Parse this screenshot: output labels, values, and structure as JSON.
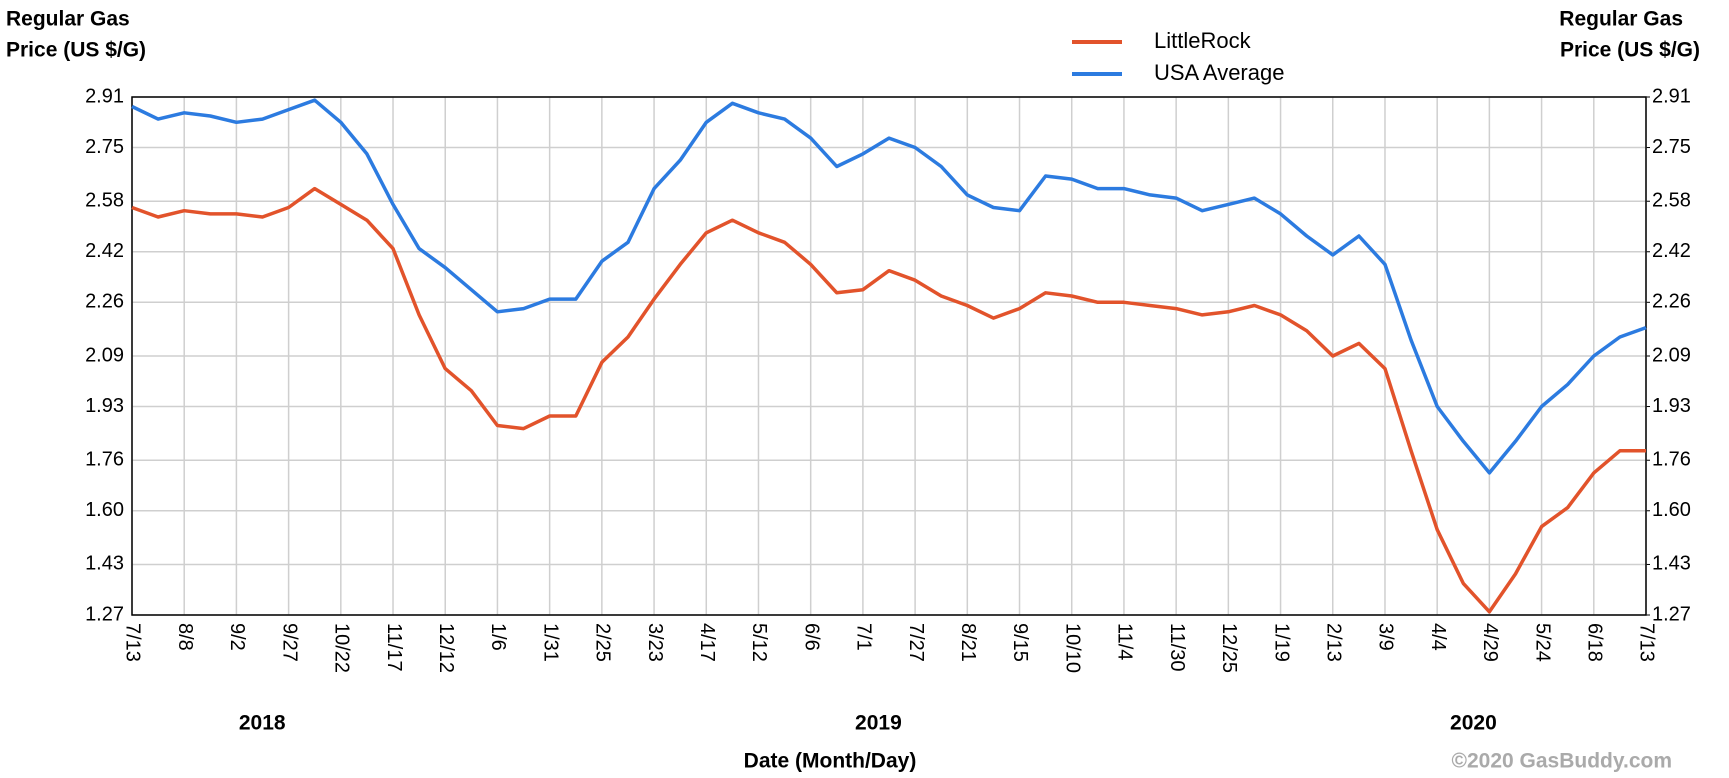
{
  "chart_data": {
    "type": "line",
    "y_label": [
      "Regular Gas",
      "Price (US $/G)"
    ],
    "y2_label": [
      "Regular Gas",
      "Price (US $/G)"
    ],
    "x_label": "Date (Month/Day)",
    "credit": "©2020 GasBuddy.com",
    "year_labels": [
      "2018",
      "2019",
      "2020"
    ],
    "categories": [
      "7/13",
      null,
      "8/8",
      null,
      "9/2",
      null,
      "9/27",
      null,
      "10/22",
      null,
      "11/17",
      null,
      "12/12",
      null,
      "1/6",
      null,
      "1/31",
      null,
      "2/25",
      null,
      "3/23",
      null,
      "4/17",
      null,
      "5/12",
      null,
      "6/6",
      null,
      "7/1",
      null,
      "7/27",
      null,
      "8/21",
      null,
      "9/15",
      null,
      "10/10",
      null,
      "11/4",
      null,
      "11/30",
      null,
      "12/25",
      null,
      "1/19",
      null,
      "2/13",
      null,
      "3/9",
      null,
      "4/4",
      null,
      "4/29",
      null,
      "5/24",
      null,
      "6/18",
      null,
      "7/13"
    ],
    "series": [
      {
        "name": "LittleRock",
        "color": "#e2532b",
        "values": [
          2.56,
          2.53,
          2.55,
          2.54,
          2.54,
          2.53,
          2.56,
          2.62,
          2.57,
          2.52,
          2.43,
          2.22,
          2.05,
          1.98,
          1.87,
          1.86,
          1.9,
          1.9,
          2.07,
          2.15,
          2.27,
          2.38,
          2.48,
          2.52,
          2.48,
          2.45,
          2.38,
          2.29,
          2.3,
          2.36,
          2.33,
          2.28,
          2.25,
          2.21,
          2.24,
          2.29,
          2.28,
          2.26,
          2.26,
          2.25,
          2.24,
          2.22,
          2.23,
          2.25,
          2.22,
          2.17,
          2.09,
          2.13,
          2.05,
          1.79,
          1.54,
          1.37,
          1.28,
          1.4,
          1.55,
          1.61,
          1.72,
          1.79,
          1.79
        ]
      },
      {
        "name": "USA Average",
        "color": "#2c7be0",
        "values": [
          2.88,
          2.84,
          2.86,
          2.85,
          2.83,
          2.84,
          2.87,
          2.9,
          2.83,
          2.73,
          2.57,
          2.43,
          2.37,
          2.3,
          2.23,
          2.24,
          2.27,
          2.27,
          2.39,
          2.45,
          2.62,
          2.71,
          2.83,
          2.89,
          2.86,
          2.84,
          2.78,
          2.69,
          2.73,
          2.78,
          2.75,
          2.69,
          2.6,
          2.56,
          2.55,
          2.66,
          2.65,
          2.62,
          2.62,
          2.6,
          2.59,
          2.55,
          2.57,
          2.59,
          2.54,
          2.47,
          2.41,
          2.47,
          2.38,
          2.14,
          1.93,
          1.82,
          1.72,
          1.82,
          1.93,
          2.0,
          2.09,
          2.15,
          2.18
        ]
      }
    ],
    "ylim": [
      1.27,
      2.91
    ],
    "yticks": [
      1.27,
      1.43,
      {
        "value": 1.6,
        "label": "1.60"
      },
      1.76,
      1.93,
      2.09,
      2.26,
      2.42,
      2.58,
      2.75,
      2.91
    ],
    "y2lim": [
      1.27,
      2.91
    ],
    "y2ticks": [
      1.27,
      1.43,
      {
        "value": 1.6,
        "label": "1.60"
      },
      1.76,
      1.93,
      2.09,
      2.26,
      2.42,
      2.58,
      2.75,
      2.91
    ],
    "grid": true,
    "legend": "top"
  }
}
